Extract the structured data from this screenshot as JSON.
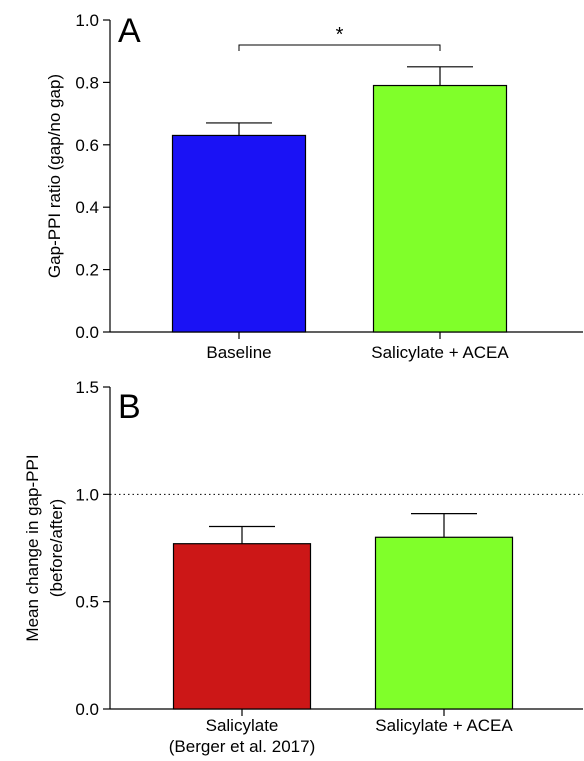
{
  "chart_data": [
    {
      "type": "bar",
      "panel_label": "A",
      "ylabel": "Gap-PPI ratio (gap/no gap)",
      "ylim": [
        0,
        1.0
      ],
      "yticks": [
        "0.0",
        "0.2",
        "0.4",
        "0.6",
        "0.8",
        "1.0"
      ],
      "ytick_values": [
        0,
        0.2,
        0.4,
        0.6,
        0.8,
        1.0
      ],
      "categories": [
        "Baseline",
        "Salicylate + ACEA"
      ],
      "values": [
        0.63,
        0.79
      ],
      "errors": [
        0.04,
        0.06
      ],
      "colors": [
        "#1a12f5",
        "#80ff2a"
      ],
      "significance": {
        "from": 0,
        "to": 1,
        "label": "*",
        "y": 0.92
      },
      "grid": false
    },
    {
      "type": "bar",
      "panel_label": "B",
      "ylabel": [
        "Mean change in gap-PPI",
        "(before/after)"
      ],
      "ylim": [
        0,
        1.5
      ],
      "yticks": [
        "0.0",
        "0.5",
        "1.0",
        "1.5"
      ],
      "ytick_values": [
        0,
        0.5,
        1.0,
        1.5
      ],
      "categories": [
        [
          "Salicylate",
          "(Berger et al. 2017)"
        ],
        [
          "Salicylate + ACEA"
        ]
      ],
      "values": [
        0.77,
        0.8
      ],
      "errors": [
        0.08,
        0.11
      ],
      "colors": [
        "#cc1717",
        "#80ff2a"
      ],
      "reference_line": 1.0,
      "grid": false
    }
  ]
}
